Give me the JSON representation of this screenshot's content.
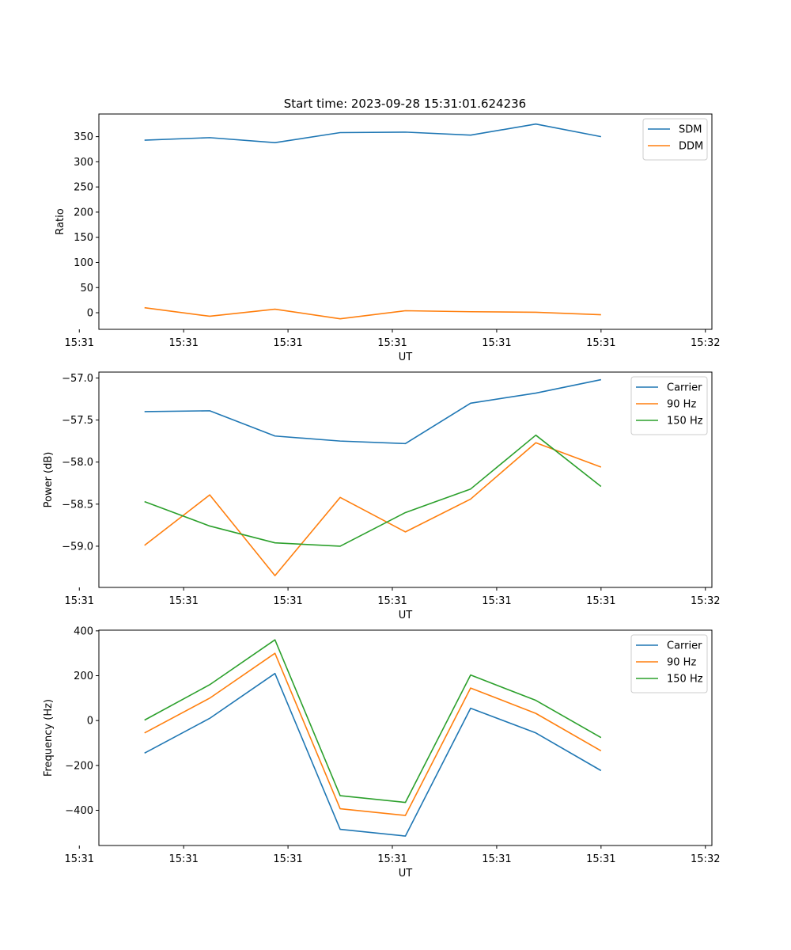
{
  "figure": {
    "title": "Start time: 2023-09-28 15:31:01.624236"
  },
  "colors": {
    "blue": "#1f77b4",
    "orange": "#ff7f0e",
    "green": "#2ca02c"
  },
  "chart_data": [
    {
      "type": "line",
      "id": "ratio",
      "title": "Start time: 2023-09-28 15:31:01.624236",
      "xlabel": "UT",
      "ylabel": "Ratio",
      "x": [
        1,
        2,
        3,
        4,
        5,
        6,
        7,
        8
      ],
      "xlim": [
        0.3,
        9.7
      ],
      "xticks": [
        {
          "v": 0,
          "label": "15:31"
        },
        {
          "v": 1.6,
          "label": "15:31"
        },
        {
          "v": 3.2,
          "label": "15:31"
        },
        {
          "v": 4.8,
          "label": "15:31"
        },
        {
          "v": 6.4,
          "label": "15:31"
        },
        {
          "v": 8.0,
          "label": "15:31"
        },
        {
          "v": 9.6,
          "label": "15:32"
        }
      ],
      "ylim": [
        -33,
        395
      ],
      "yticks": [
        0,
        50,
        100,
        150,
        200,
        250,
        300,
        350
      ],
      "legend": "top-right",
      "series": [
        {
          "name": "SDM",
          "color": "#1f77b4",
          "values": [
            343,
            348,
            338,
            358,
            359,
            353,
            375,
            350
          ]
        },
        {
          "name": "DDM",
          "color": "#ff7f0e",
          "values": [
            10,
            -7,
            7,
            -12,
            4,
            2,
            1,
            -4
          ]
        }
      ]
    },
    {
      "type": "line",
      "id": "power",
      "xlabel": "UT",
      "ylabel": "Power (dB)",
      "x": [
        1,
        2,
        3,
        4,
        5,
        6,
        7,
        8
      ],
      "xlim": [
        0.3,
        9.7
      ],
      "xticks": [
        {
          "v": 0,
          "label": "15:31"
        },
        {
          "v": 1.6,
          "label": "15:31"
        },
        {
          "v": 3.2,
          "label": "15:31"
        },
        {
          "v": 4.8,
          "label": "15:31"
        },
        {
          "v": 6.4,
          "label": "15:31"
        },
        {
          "v": 8.0,
          "label": "15:31"
        },
        {
          "v": 9.6,
          "label": "15:32"
        }
      ],
      "ylim": [
        -59.49,
        -56.93
      ],
      "yticks": [
        -59.0,
        -58.5,
        -58.0,
        -57.5,
        -57.0
      ],
      "ytick_labels": [
        "−59.0",
        "−58.5",
        "−58.0",
        "−57.5",
        "−57.0"
      ],
      "legend": "top-right",
      "series": [
        {
          "name": "Carrier",
          "color": "#1f77b4",
          "values": [
            -57.4,
            -57.39,
            -57.69,
            -57.75,
            -57.78,
            -57.3,
            -57.18,
            -57.02
          ]
        },
        {
          "name": "90 Hz",
          "color": "#ff7f0e",
          "values": [
            -58.99,
            -58.39,
            -59.35,
            -58.42,
            -58.83,
            -58.44,
            -57.77,
            -58.06
          ]
        },
        {
          "name": "150 Hz",
          "color": "#2ca02c",
          "values": [
            -58.47,
            -58.76,
            -58.96,
            -59.0,
            -58.6,
            -58.32,
            -57.68,
            -58.29
          ]
        }
      ]
    },
    {
      "type": "line",
      "id": "frequency",
      "xlabel": "UT",
      "ylabel": "Frequency (Hz)",
      "x": [
        1,
        2,
        3,
        4,
        5,
        6,
        7,
        8
      ],
      "xlim": [
        0.3,
        9.7
      ],
      "xticks": [
        {
          "v": 0,
          "label": "15:31"
        },
        {
          "v": 1.6,
          "label": "15:31"
        },
        {
          "v": 3.2,
          "label": "15:31"
        },
        {
          "v": 4.8,
          "label": "15:31"
        },
        {
          "v": 6.4,
          "label": "15:31"
        },
        {
          "v": 8.0,
          "label": "15:31"
        },
        {
          "v": 9.6,
          "label": "15:32"
        }
      ],
      "ylim": [
        -557,
        403
      ],
      "yticks": [
        -400,
        -200,
        0,
        200,
        400
      ],
      "ytick_labels": [
        "−400",
        "−200",
        "0",
        "200",
        "400"
      ],
      "legend": "top-right",
      "series": [
        {
          "name": "Carrier",
          "color": "#1f77b4",
          "values": [
            -145,
            10,
            210,
            -485,
            -515,
            55,
            -55,
            -223
          ]
        },
        {
          "name": "90 Hz",
          "color": "#ff7f0e",
          "values": [
            -55,
            100,
            300,
            -393,
            -423,
            145,
            32,
            -135
          ]
        },
        {
          "name": "150 Hz",
          "color": "#2ca02c",
          "values": [
            2,
            160,
            360,
            -335,
            -365,
            203,
            90,
            -76
          ]
        }
      ]
    }
  ]
}
